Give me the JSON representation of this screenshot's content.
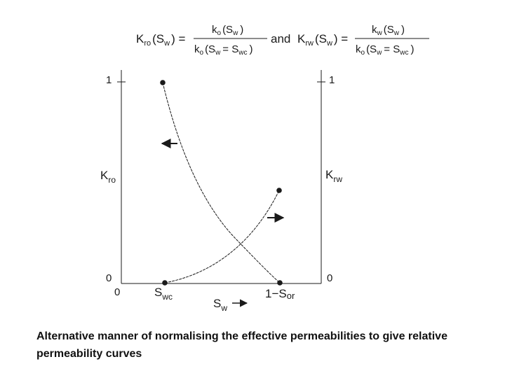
{
  "equation": {
    "kro_lhs": "K",
    "kro_lhs_sub": "ro",
    "kro_lhs_arg": "(S",
    "kro_lhs_arg_sub": "w",
    "kro_lhs_close": ") =",
    "kro_num": "k",
    "kro_num_sub": "o",
    "kro_num_arg": "(S",
    "kro_num_arg_sub": "w",
    "kro_num_close": ")",
    "kro_den": "k",
    "kro_den_sub": "o",
    "kro_den_arg": "(S",
    "kro_den_arg_sub": "w",
    "kro_den_eq": "= S",
    "kro_den_eq_sub": "wc",
    "kro_den_close": ")",
    "and": "and",
    "krw_lhs": "K",
    "krw_lhs_sub": "rw",
    "krw_lhs_arg": "(S",
    "krw_lhs_arg_sub": "w",
    "krw_lhs_close": ") =",
    "krw_num": "k",
    "krw_num_sub": "w",
    "krw_num_arg": "(S",
    "krw_num_arg_sub": "w",
    "krw_num_close": ")",
    "krw_den": "k",
    "krw_den_sub": "o",
    "krw_den_arg": "(S",
    "krw_den_arg_sub": "w",
    "krw_den_eq": "= S",
    "krw_den_eq_sub": "wc",
    "krw_den_close": ")"
  },
  "axes": {
    "left_top_label": "1",
    "left_bottom_label": "0",
    "right_top_label": "1",
    "right_bottom_label": "0",
    "x_origin_label": "0",
    "left_axis_label": "K",
    "left_axis_label_sub": "ro",
    "right_axis_label": "K",
    "right_axis_label_sub": "rw",
    "swc_label": "S",
    "swc_label_sub": "wc",
    "sor_label_prefix": "1−S",
    "sor_label_sub": "or",
    "x_axis_label": "S",
    "x_axis_label_sub": "w"
  },
  "caption": "Alternative manner of normalising the effective permeabilities to give relative permeability curves"
}
